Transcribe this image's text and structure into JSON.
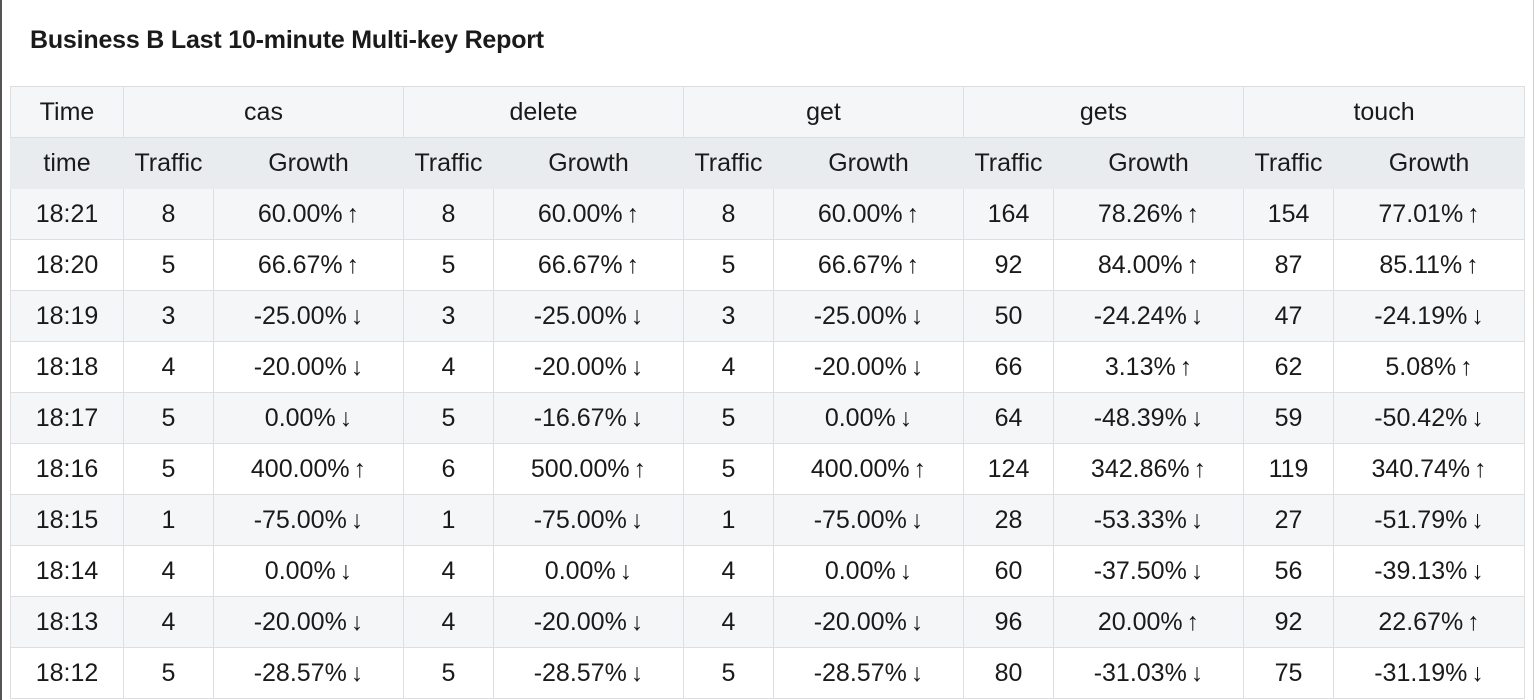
{
  "title": "Business B Last 10-minute Multi-key Report",
  "groups": {
    "time": "Time",
    "cas": "cas",
    "delete": "delete",
    "get": "get",
    "gets": "gets",
    "touch": "touch"
  },
  "subheaders": {
    "time": "time",
    "traffic": "Traffic",
    "growth": "Growth"
  },
  "icons": {
    "up": "arrow-up-icon",
    "down": "arrow-down-icon"
  },
  "rows": [
    {
      "time": "18:21",
      "cas_t": "8",
      "cas_g": "60.00%",
      "cas_d": "↑",
      "delete_t": "8",
      "delete_g": "60.00%",
      "delete_d": "↑",
      "get_t": "8",
      "get_g": "60.00%",
      "get_d": "↑",
      "gets_t": "164",
      "gets_g": "78.26%",
      "gets_d": "↑",
      "touch_t": "154",
      "touch_g": "77.01%",
      "touch_d": "↑"
    },
    {
      "time": "18:20",
      "cas_t": "5",
      "cas_g": "66.67%",
      "cas_d": "↑",
      "delete_t": "5",
      "delete_g": "66.67%",
      "delete_d": "↑",
      "get_t": "5",
      "get_g": "66.67%",
      "get_d": "↑",
      "gets_t": "92",
      "gets_g": "84.00%",
      "gets_d": "↑",
      "touch_t": "87",
      "touch_g": "85.11%",
      "touch_d": "↑"
    },
    {
      "time": "18:19",
      "cas_t": "3",
      "cas_g": "-25.00%",
      "cas_d": "↓",
      "delete_t": "3",
      "delete_g": "-25.00%",
      "delete_d": "↓",
      "get_t": "3",
      "get_g": "-25.00%",
      "get_d": "↓",
      "gets_t": "50",
      "gets_g": "-24.24%",
      "gets_d": "↓",
      "touch_t": "47",
      "touch_g": "-24.19%",
      "touch_d": "↓"
    },
    {
      "time": "18:18",
      "cas_t": "4",
      "cas_g": "-20.00%",
      "cas_d": "↓",
      "delete_t": "4",
      "delete_g": "-20.00%",
      "delete_d": "↓",
      "get_t": "4",
      "get_g": "-20.00%",
      "get_d": "↓",
      "gets_t": "66",
      "gets_g": "3.13%",
      "gets_d": "↑",
      "touch_t": "62",
      "touch_g": "5.08%",
      "touch_d": "↑"
    },
    {
      "time": "18:17",
      "cas_t": "5",
      "cas_g": "0.00%",
      "cas_d": "↓",
      "delete_t": "5",
      "delete_g": "-16.67%",
      "delete_d": "↓",
      "get_t": "5",
      "get_g": "0.00%",
      "get_d": "↓",
      "gets_t": "64",
      "gets_g": "-48.39%",
      "gets_d": "↓",
      "touch_t": "59",
      "touch_g": "-50.42%",
      "touch_d": "↓"
    },
    {
      "time": "18:16",
      "cas_t": "5",
      "cas_g": "400.00%",
      "cas_d": "↑",
      "delete_t": "6",
      "delete_g": "500.00%",
      "delete_d": "↑",
      "get_t": "5",
      "get_g": "400.00%",
      "get_d": "↑",
      "gets_t": "124",
      "gets_g": "342.86%",
      "gets_d": "↑",
      "touch_t": "119",
      "touch_g": "340.74%",
      "touch_d": "↑"
    },
    {
      "time": "18:15",
      "cas_t": "1",
      "cas_g": "-75.00%",
      "cas_d": "↓",
      "delete_t": "1",
      "delete_g": "-75.00%",
      "delete_d": "↓",
      "get_t": "1",
      "get_g": "-75.00%",
      "get_d": "↓",
      "gets_t": "28",
      "gets_g": "-53.33%",
      "gets_d": "↓",
      "touch_t": "27",
      "touch_g": "-51.79%",
      "touch_d": "↓"
    },
    {
      "time": "18:14",
      "cas_t": "4",
      "cas_g": "0.00%",
      "cas_d": "↓",
      "delete_t": "4",
      "delete_g": "0.00%",
      "delete_d": "↓",
      "get_t": "4",
      "get_g": "0.00%",
      "get_d": "↓",
      "gets_t": "60",
      "gets_g": "-37.50%",
      "gets_d": "↓",
      "touch_t": "56",
      "touch_g": "-39.13%",
      "touch_d": "↓"
    },
    {
      "time": "18:13",
      "cas_t": "4",
      "cas_g": "-20.00%",
      "cas_d": "↓",
      "delete_t": "4",
      "delete_g": "-20.00%",
      "delete_d": "↓",
      "get_t": "4",
      "get_g": "-20.00%",
      "get_d": "↓",
      "gets_t": "96",
      "gets_g": "20.00%",
      "gets_d": "↑",
      "touch_t": "92",
      "touch_g": "22.67%",
      "touch_d": "↑"
    },
    {
      "time": "18:12",
      "cas_t": "5",
      "cas_g": "-28.57%",
      "cas_d": "↓",
      "delete_t": "5",
      "delete_g": "-28.57%",
      "delete_d": "↓",
      "get_t": "5",
      "get_g": "-28.57%",
      "get_d": "↓",
      "gets_t": "80",
      "gets_g": "-31.03%",
      "gets_d": "↓",
      "touch_t": "75",
      "touch_g": "-31.19%",
      "touch_d": "↓"
    }
  ]
}
